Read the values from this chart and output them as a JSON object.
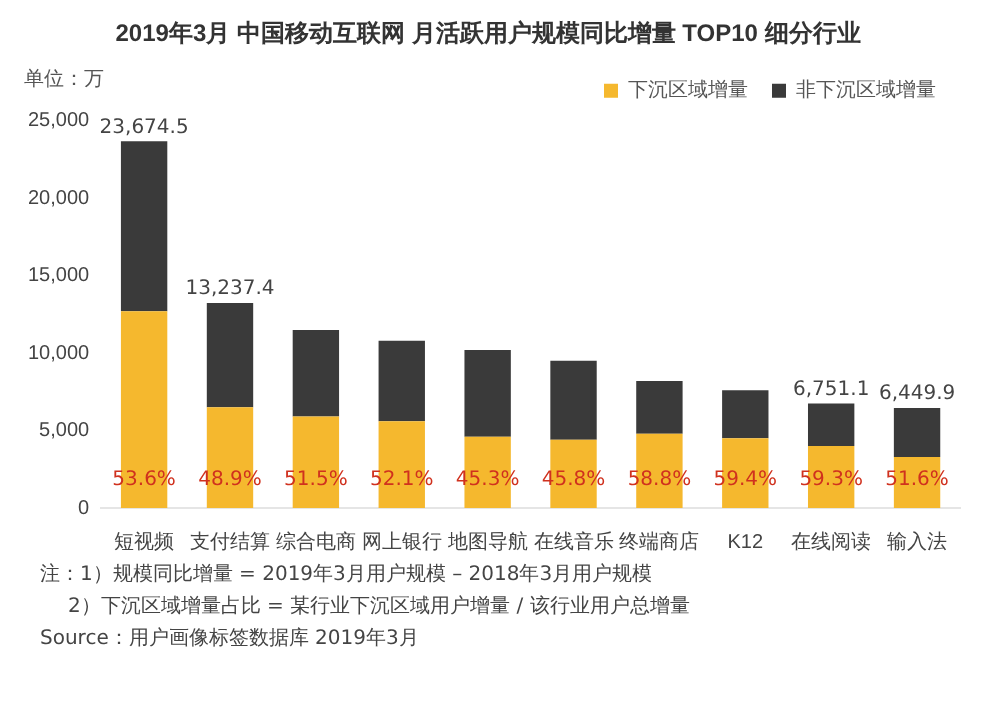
{
  "chart_data": {
    "type": "bar",
    "title": "2019年3月 中国移动互联网 月活跃用户规模同比增量 TOP10 细分行业",
    "ylabel": "单位：万",
    "categories": [
      "短视频",
      "支付结算",
      "综合电商",
      "网上银行",
      "地图导航",
      "在线音乐",
      "终端商店",
      "K12",
      "在线阅读",
      "输入法"
    ],
    "stacked": true,
    "series": [
      {
        "name": "下沉区域增量",
        "color": "#f5b82e",
        "values": [
          12700,
          6500,
          5900,
          5600,
          4600,
          4400,
          4800,
          4500,
          4000,
          3300
        ]
      },
      {
        "name": "非下沉区域增量",
        "color": "#3a3a3a",
        "values": [
          10974.5,
          6737.4,
          5600,
          5200,
          5600,
          5100,
          3400,
          3100,
          2751.1,
          3149.9
        ]
      }
    ],
    "totals": [
      "23,674.5",
      "13,237.4",
      null,
      null,
      null,
      null,
      null,
      null,
      "6,751.1",
      "6,449.9"
    ],
    "ylim": [
      0,
      25000
    ],
    "yticks": [
      0,
      {
        "value": 5000,
        "label": "5,000"
      },
      {
        "value": 10000,
        "label": "10,000"
      },
      {
        "value": 15000,
        "label": "15,000"
      },
      {
        "value": 20000,
        "label": "20,000"
      },
      {
        "value": 25000,
        "label": "25,000"
      }
    ],
    "grid": false,
    "legend": "top right",
    "annotations": [
      {
        "text": "53.6%",
        "x": "短视频",
        "y": 0
      },
      {
        "text": "48.9%",
        "x": "支付结算",
        "y": 0
      },
      {
        "text": "51.5%",
        "x": "综合电商",
        "y": 0
      },
      {
        "text": "52.1%",
        "x": "网上银行",
        "y": 0
      },
      {
        "text": "45.3%",
        "x": "地图导航",
        "y": 0
      },
      {
        "text": "45.8%",
        "x": "在线音乐",
        "y": 0
      },
      {
        "text": "58.8%",
        "x": "终端商店",
        "y": 0
      },
      {
        "text": "59.4%",
        "x": "K12",
        "y": 0
      },
      {
        "text": "59.3%",
        "x": "在线阅读",
        "y": 0
      },
      {
        "text": "51.6%",
        "x": "输入法",
        "y": 0
      },
      "注：1）规模同比增量 = 2019年3月用户规模 – 2018年3月用户规模",
      "2）下沉区域增量占比 = 某行业下沉区域用户增量 / 该行业用户总增量",
      "Source：用户画像标签数据库 2019年3月"
    ]
  }
}
